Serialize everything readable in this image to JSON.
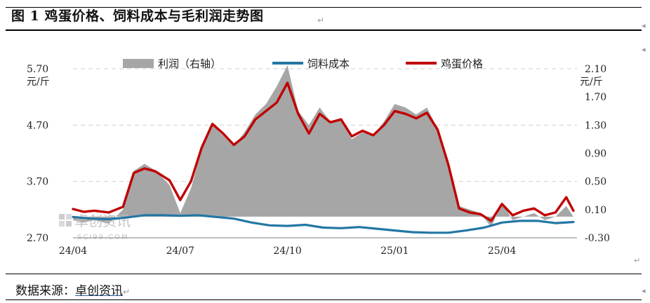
{
  "header": {
    "title": "图 1  鸡蛋价格、饲料成本与毛利润走势图",
    "para_mark": "↵"
  },
  "footer": {
    "source_prefix": "数据来源：",
    "source_name": "卓创资讯",
    "para_mark": "↵"
  },
  "watermark": {
    "main": "卓创资讯",
    "sub": "SCI99.COM"
  },
  "chart_data": {
    "type": "line",
    "left_unit": "元/斤",
    "right_unit": "元/斤",
    "left_axis": {
      "ticks": [
        "5.70",
        "4.70",
        "3.70",
        "2.70"
      ],
      "values": [
        5.7,
        4.7,
        3.7,
        2.7
      ],
      "ylim": [
        2.7,
        5.7
      ]
    },
    "right_axis": {
      "ticks": [
        "2.10",
        "1.70",
        "1.30",
        "0.90",
        "0.50",
        "0.10",
        "-0.30"
      ],
      "values": [
        2.1,
        1.7,
        1.3,
        0.9,
        0.5,
        0.1,
        -0.3
      ],
      "ylim": [
        -0.3,
        2.1
      ]
    },
    "x_ticks": [
      "24/04",
      "24/07",
      "24/10",
      "25/01",
      "25/04"
    ],
    "x_tick_index": [
      0,
      3,
      6,
      9,
      12
    ],
    "x_range": [
      0,
      14.1
    ],
    "grid": "horizontal-dashed",
    "legend": {
      "placement": "top",
      "items": [
        "利润（右轴）",
        "饲料成本",
        "鸡蛋价格"
      ]
    },
    "colors": {
      "profit": "#a6a6a6",
      "feed": "#2377a4",
      "egg": "#c00000",
      "grid": "#cfcfcf"
    },
    "series": [
      {
        "name": "利润（右轴）",
        "axis": "right",
        "style": "area",
        "x": [
          0,
          0.3,
          0.6,
          1.0,
          1.4,
          1.7,
          2.0,
          2.3,
          2.7,
          3.0,
          3.3,
          3.6,
          3.9,
          4.2,
          4.5,
          4.8,
          5.1,
          5.4,
          5.7,
          6.0,
          6.3,
          6.6,
          6.9,
          7.2,
          7.5,
          7.8,
          8.1,
          8.4,
          8.7,
          9.0,
          9.3,
          9.6,
          9.9,
          10.2,
          10.5,
          10.8,
          11.1,
          11.4,
          11.7,
          12.0,
          12.3,
          12.6,
          12.9,
          13.2,
          13.5,
          13.8,
          14.0
        ],
        "values": [
          -0.05,
          -0.08,
          -0.05,
          -0.1,
          0.1,
          0.65,
          0.75,
          0.66,
          0.45,
          0.05,
          0.4,
          0.95,
          1.3,
          1.15,
          1.0,
          1.2,
          1.45,
          1.6,
          1.85,
          2.15,
          1.5,
          1.3,
          1.55,
          1.35,
          1.4,
          1.1,
          1.2,
          1.15,
          1.35,
          1.6,
          1.55,
          1.45,
          1.55,
          1.25,
          0.8,
          0.15,
          0.1,
          0.05,
          -0.15,
          0.2,
          -0.05,
          0.0,
          0.05,
          -0.05,
          0.0,
          0.15,
          0.0
        ]
      },
      {
        "name": "饲料成本",
        "axis": "left",
        "style": "line",
        "x": [
          0,
          0.5,
          1.0,
          1.5,
          2.0,
          2.5,
          3.0,
          3.5,
          4.0,
          4.5,
          5.0,
          5.5,
          6.0,
          6.5,
          7.0,
          7.5,
          8.0,
          8.5,
          9.0,
          9.5,
          10.0,
          10.5,
          11.0,
          11.5,
          12.0,
          12.5,
          13.0,
          13.5,
          14.0
        ],
        "values": [
          3.07,
          3.04,
          3.03,
          3.06,
          3.1,
          3.1,
          3.09,
          3.1,
          3.07,
          3.04,
          2.97,
          2.92,
          2.91,
          2.93,
          2.88,
          2.87,
          2.89,
          2.86,
          2.83,
          2.8,
          2.79,
          2.79,
          2.83,
          2.88,
          2.97,
          3.0,
          3.0,
          2.96,
          2.98
        ]
      },
      {
        "name": "鸡蛋价格",
        "axis": "left",
        "style": "line",
        "x": [
          0,
          0.3,
          0.6,
          1.0,
          1.4,
          1.7,
          2.0,
          2.3,
          2.7,
          3.0,
          3.3,
          3.6,
          3.9,
          4.2,
          4.5,
          4.8,
          5.1,
          5.4,
          5.7,
          6.0,
          6.3,
          6.6,
          6.9,
          7.2,
          7.5,
          7.8,
          8.1,
          8.4,
          8.7,
          9.0,
          9.3,
          9.6,
          9.9,
          10.2,
          10.5,
          10.8,
          11.1,
          11.4,
          11.7,
          12.0,
          12.3,
          12.6,
          12.9,
          13.2,
          13.5,
          13.8,
          14.0
        ],
        "values": [
          3.21,
          3.16,
          3.18,
          3.15,
          3.25,
          3.85,
          3.93,
          3.88,
          3.72,
          3.37,
          3.7,
          4.3,
          4.72,
          4.55,
          4.35,
          4.5,
          4.8,
          4.95,
          5.1,
          5.45,
          4.9,
          4.55,
          4.9,
          4.75,
          4.8,
          4.5,
          4.6,
          4.52,
          4.7,
          4.95,
          4.9,
          4.82,
          4.92,
          4.62,
          4.0,
          3.22,
          3.15,
          3.12,
          3.0,
          3.3,
          3.1,
          3.18,
          3.22,
          3.1,
          3.15,
          3.42,
          3.18
        ]
      }
    ]
  }
}
